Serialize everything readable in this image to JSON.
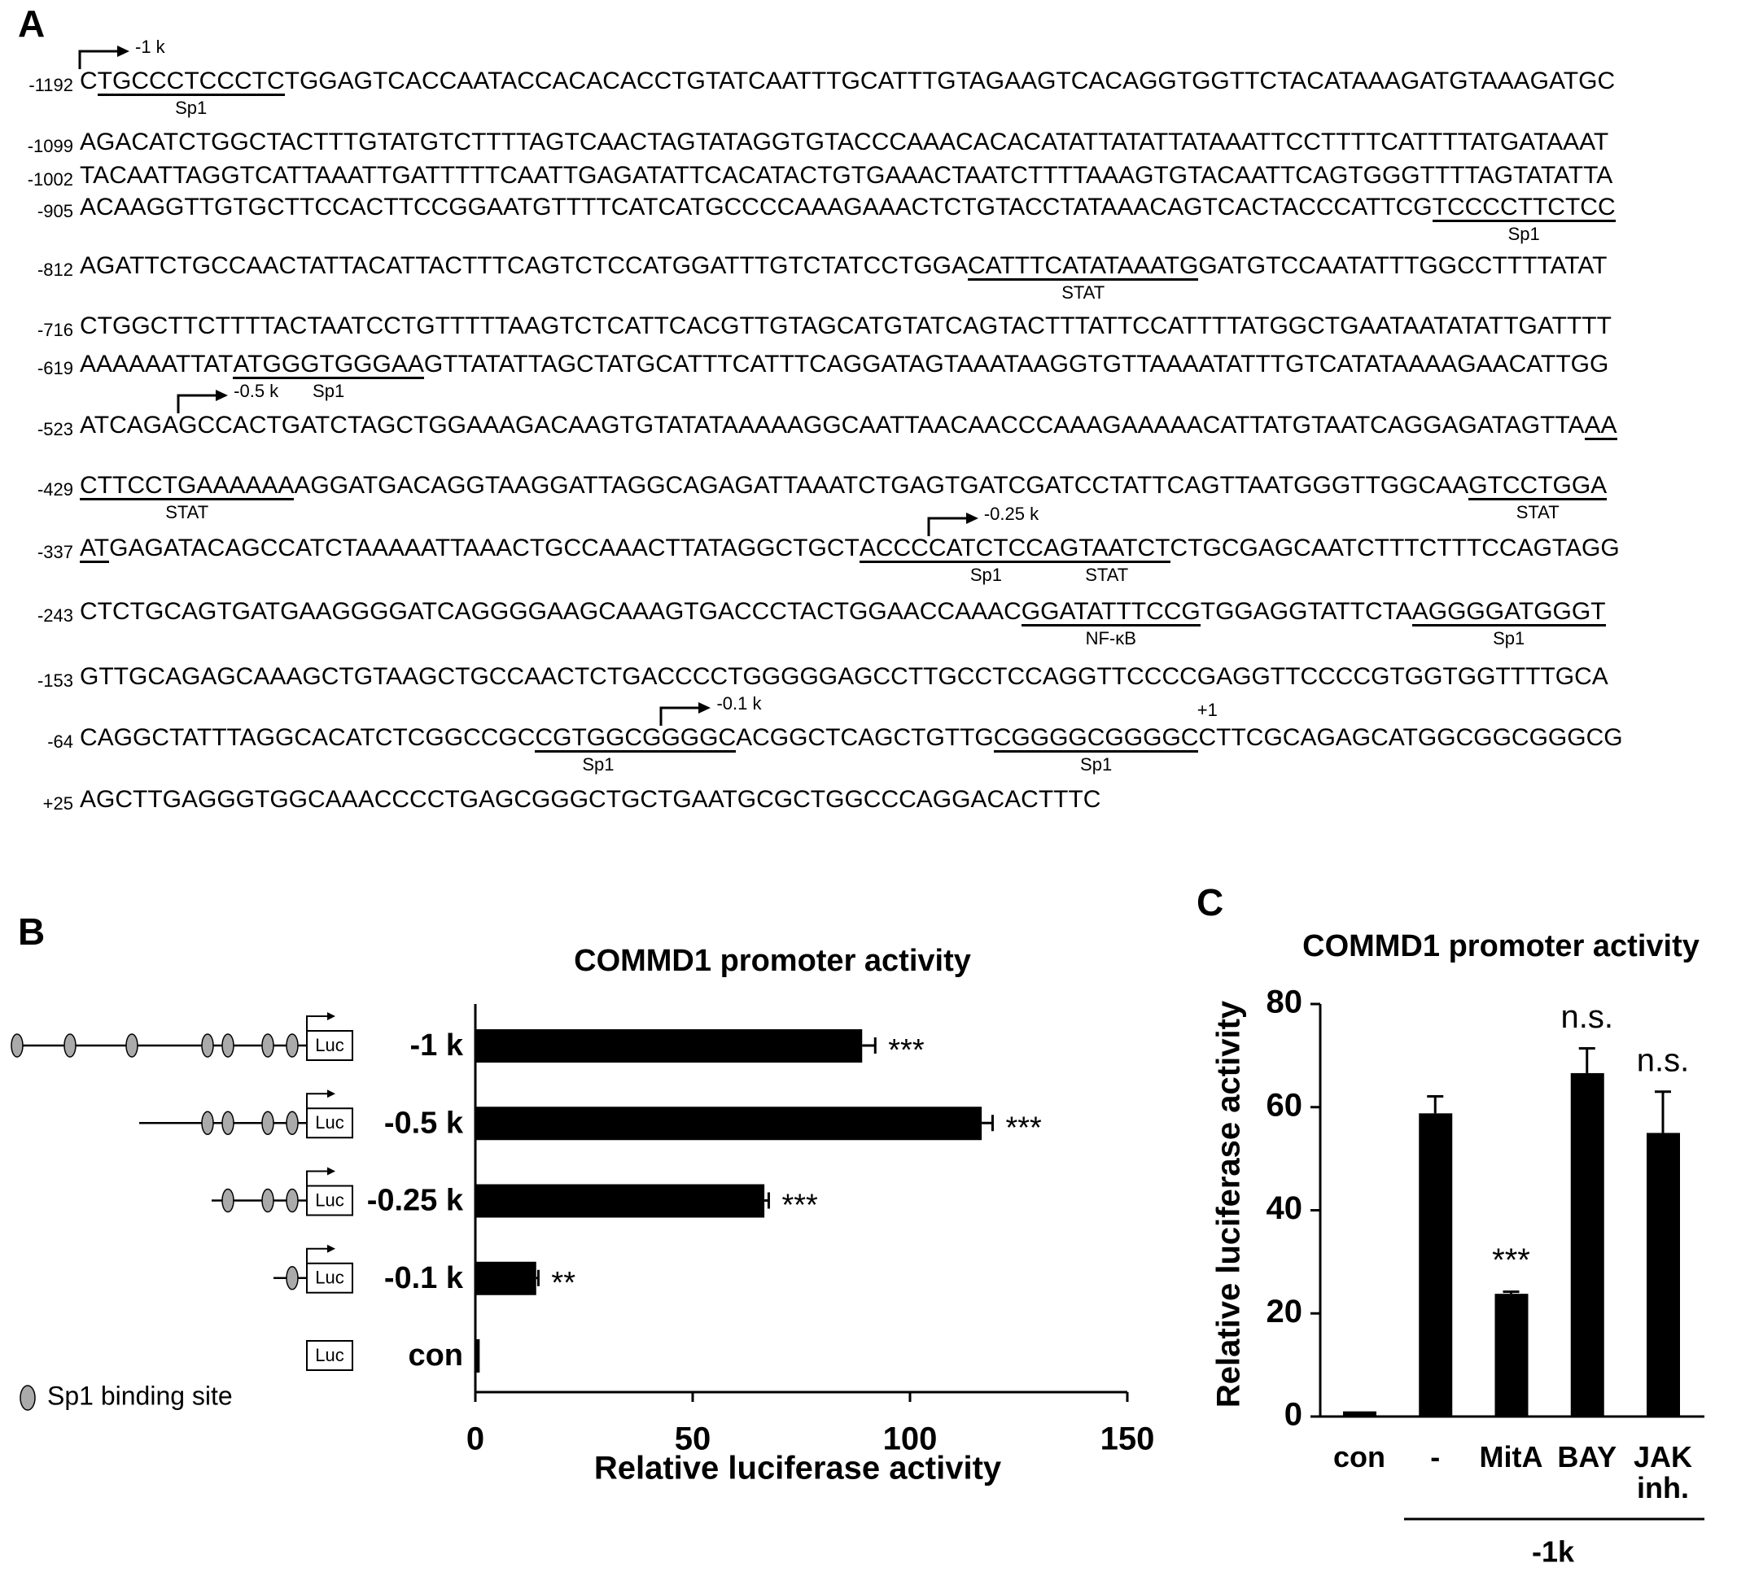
{
  "panel_a": {
    "label": "A",
    "lines": [
      {
        "pos": "-1192",
        "segments": [
          {
            "text": "C",
            "tss": "-1 k"
          },
          {
            "text": "TGCCCTCCCTC",
            "underline": true,
            "site": "Sp1"
          },
          {
            "text": "TGGAGTCACCAATACCACACACCTGTATCAATTTGCATTTGTAGAAGTCACAGGTGGTTCTACATAAAGATGTAAAGATGC"
          }
        ]
      },
      {
        "pos": "-1099",
        "segments": [
          {
            "text": "AGACATCTGGCTACTTTGTATGTCTTTTAGTCAACTAGTATAGGTGTACCCAAACACACATATTATATTATAAATTCCTTTTCATTTTATGATAAAT"
          }
        ]
      },
      {
        "pos": "-1002",
        "segments": [
          {
            "text": "TACAATTAGGTCATTAAATTGATTTTTCAATTGAGATATTCACATACTGTGAAACTAATCTTTTAAAGTGTACAATTCAGTGGGTTTTAGTATATTA"
          }
        ]
      },
      {
        "pos": "-905",
        "segments": [
          {
            "text": "ACAAGGTTGTGCTTCCACTTCCGGAATGTTTTCATCATGCCCCAAAGAAACTCTGTACCTATAAACAGTCACTACCCATTCG"
          },
          {
            "text": "TCCCCTTCTCC",
            "underline": true,
            "site": "Sp1"
          }
        ]
      },
      {
        "pos": "-812",
        "segments": [
          {
            "text": "AGATTCTGCCAACTATTACATTACTTTCAGTCTCCATGGATTTGTCTATCCTGGA"
          },
          {
            "text": "CATTTCATATAAATG",
            "underline": true,
            "site": "STAT"
          },
          {
            "text": "GATGTCCAATATTTGGCCTTTTATAT"
          }
        ]
      },
      {
        "pos": "-716",
        "segments": [
          {
            "text": "CTGGCTTCTTTTACTAATCCTGTTTTTAAGTCTCATTCACGTTGTAGCATGTATCAGTACTTTATTCCATTTTATGGCTGAATAATATATTGATTTT"
          }
        ]
      },
      {
        "pos": "-619",
        "segments": [
          {
            "text": "AAAAAATTAT"
          },
          {
            "text": "ATGGGTGGGAA",
            "underline": true,
            "site": "Sp1"
          },
          {
            "text": "GTTATATTAGCTATGCATTTCATTTCAGGATAGTAAATAAGGTGTTAAAATATTTGTCATATAAAAGAACATTGG"
          }
        ]
      },
      {
        "pos": "-523",
        "segments": [
          {
            "text": "ATCAGA"
          },
          {
            "text": "GCCACTGATCTAGCTGGAAAGACAAGTGTATATAAAAAGGCAATTAACAACCCAAAGAAAAACATTATGTAATCAGGAGATAGTTA",
            "tss": "-0.5 k"
          },
          {
            "text": "AA",
            "underline": true
          }
        ]
      },
      {
        "pos": "-429",
        "segments": [
          {
            "text": "CTTCCTGAAAAAA",
            "underline": true,
            "site": "STAT"
          },
          {
            "text": "AGGATGACAGGTAAGGATTAGGCAGAGATTAAATCTGAGTGATCGATCCTATTCAGTTAATGGGTTGGCAA"
          },
          {
            "text": "GTCCTGGA",
            "underline": true,
            "site": "STAT"
          }
        ]
      },
      {
        "pos": "-337",
        "segments": [
          {
            "text": "AT",
            "underline": true
          },
          {
            "text": "GAGATACAGCCATCTAAAAATTAAACTGCCAAACTTATAGGCTGCT"
          },
          {
            "text": "ACCC",
            "underline": true
          },
          {
            "text": "CATCTCC",
            "underline": true,
            "site": "Sp1",
            "tss": "-0.25 k"
          },
          {
            "text": "AGTAATCT",
            "underline": true,
            "site": "STAT"
          },
          {
            "text": "CTGCGAGCAATCTTTCTTTCCAGTAGG"
          }
        ]
      },
      {
        "pos": "-243",
        "segments": [
          {
            "text": "CTCTGCAGTGATGAAGGGGATCAGGGGAAGCAAAGTGACCCTACTGGAACCAAAC"
          },
          {
            "text": "GGATATTTCCG",
            "underline": true,
            "site": "NF-κB"
          },
          {
            "text": "TGGAGGTATTCTA"
          },
          {
            "text": "AGGGGATGGGT",
            "underline": true,
            "site": "Sp1"
          }
        ]
      },
      {
        "pos": "-153",
        "segments": [
          {
            "text": "GTTGCAGAGCAAAGCTGTAAGCTGCCAACTCTGACCCCTGGGGGAGCCTTGCCTCCAGGTTCCCCGAGGTTCCCCGTGGTGGTTTTGCA"
          }
        ]
      },
      {
        "pos": "-64",
        "segments": [
          {
            "text": "CAGGCTATTTAGGCACATCTCGGCCGC"
          },
          {
            "text": "CGTGGCG",
            "underline": true,
            "site": "Sp1"
          },
          {
            "text": "GGGC",
            "underline": true,
            "tss": "-0.1 k"
          },
          {
            "text": "ACGGCTCAGCTGTTG"
          },
          {
            "text": "CGGGGCGGGGC",
            "underline": true,
            "site": "Sp1"
          },
          {
            "text": "C",
            "above": "+1"
          },
          {
            "text": "TTCGCAGAGCATGGCGGCGGGCG"
          }
        ]
      },
      {
        "pos": "+25",
        "segments": [
          {
            "text": "AGCTTGAGGGTGGCAAACCCCTGAGCGGGCTGCTGAATGCGCTGGCCCAGGACACTTTC"
          }
        ]
      }
    ]
  },
  "chart_data": [
    {
      "label": "B",
      "type": "bar",
      "orientation": "horizontal",
      "title": "COMMD1 promoter activity",
      "x_label": "Relative luciferase activity",
      "categories": [
        "-1 k",
        "-0.5 k",
        "-0.25 k",
        "-0.1 k",
        "con"
      ],
      "values": [
        89,
        116.5,
        66.5,
        14,
        1
      ],
      "errors": [
        3,
        2.5,
        1,
        0.5,
        null
      ],
      "significance": [
        "***",
        "***",
        "***",
        "**",
        null
      ],
      "color": "#000000",
      "xlim": [
        0,
        150
      ],
      "xticks": [
        0,
        50,
        100,
        150
      ],
      "construct_label": "Luc",
      "legend": "Sp1 binding site"
    },
    {
      "label": "C",
      "type": "bar",
      "orientation": "vertical",
      "title": "COMMD1 promoter activity",
      "y_label": "Relative luciferase activity",
      "categories": [
        "con",
        "-",
        "MitA",
        "BAY",
        "JAK inh."
      ],
      "values": [
        1,
        58.8,
        23.8,
        66.6,
        55
      ],
      "errors": [
        null,
        3.3,
        0.4,
        4.8,
        8
      ],
      "significance": [
        null,
        null,
        "***",
        "n.s.",
        "n.s."
      ],
      "group_label": "-1k",
      "color": "#000000",
      "ylim": [
        0,
        80
      ],
      "yticks": [
        0,
        20,
        40,
        60,
        80
      ]
    }
  ]
}
